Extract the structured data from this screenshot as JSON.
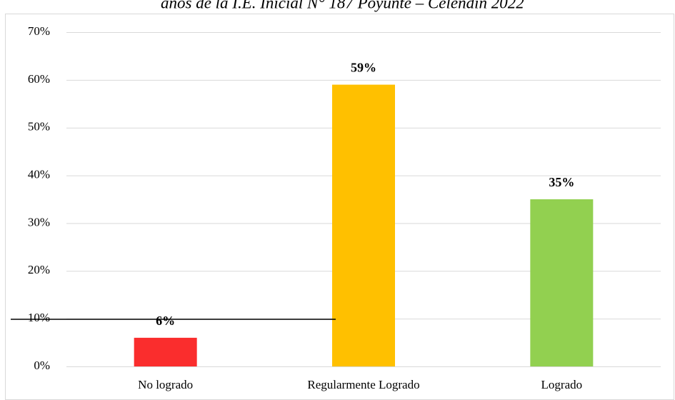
{
  "chart_data": {
    "type": "bar",
    "title": "años de la I.E. Inicial N° 187 Poyunte – Celendín 2022",
    "categories": [
      "No logrado",
      "Regularmente Logrado",
      "Logrado"
    ],
    "values": [
      6,
      59,
      35
    ],
    "value_labels": [
      "6%",
      "59%",
      "35%"
    ],
    "colors": [
      "#fa2d2d",
      "#ffc000",
      "#92d050"
    ],
    "ylim": [
      0,
      70
    ],
    "yticks": [
      {
        "value": 0,
        "label": "0%"
      },
      {
        "value": 10,
        "label": "10%"
      },
      {
        "value": 20,
        "label": "20%"
      },
      {
        "value": 30,
        "label": "30%"
      },
      {
        "value": 40,
        "label": "40%"
      },
      {
        "value": 50,
        "label": "50%"
      },
      {
        "value": 60,
        "label": "60%"
      },
      {
        "value": 70,
        "label": "70%"
      }
    ],
    "grid": true
  }
}
